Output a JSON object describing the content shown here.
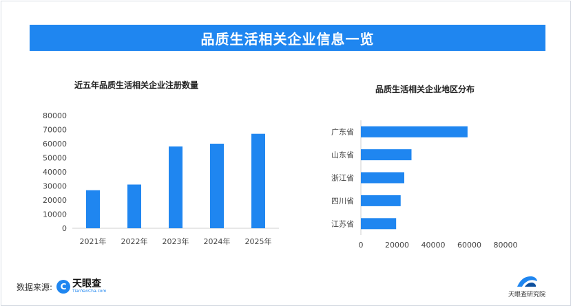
{
  "header": {
    "title": "品质生活相关企业信息一览"
  },
  "footer": {
    "source_label": "数据来源:",
    "logo_name": "天眼查",
    "logo_sub": "TianYanCha.com",
    "institute": "天眼查研究院"
  },
  "chart_data": [
    {
      "type": "bar",
      "title": "近五年品质生活相关企业注册数量",
      "categories": [
        "2021年",
        "2022年",
        "2023年",
        "2024年",
        "2025年"
      ],
      "values": [
        27000,
        31000,
        58000,
        60000,
        67000
      ],
      "ylim": [
        0,
        80000
      ],
      "yticks": [
        "0",
        "10000",
        "20000",
        "30000",
        "40000",
        "50000",
        "60000",
        "70000",
        "80000"
      ],
      "xlabel": "",
      "ylabel": "",
      "grid": false,
      "color": "#1f86f0"
    },
    {
      "type": "bar",
      "orientation": "horizontal",
      "title": "品质生活相关企业地区分布",
      "categories": [
        "广东省",
        "山东省",
        "浙江省",
        "四川省",
        "江苏省"
      ],
      "values": [
        59000,
        28000,
        24000,
        22000,
        19500
      ],
      "xlim": [
        0,
        80000
      ],
      "xticks": [
        "0",
        "20000",
        "40000",
        "60000",
        "80000"
      ],
      "grid": false,
      "color": "#1f86f0"
    }
  ]
}
